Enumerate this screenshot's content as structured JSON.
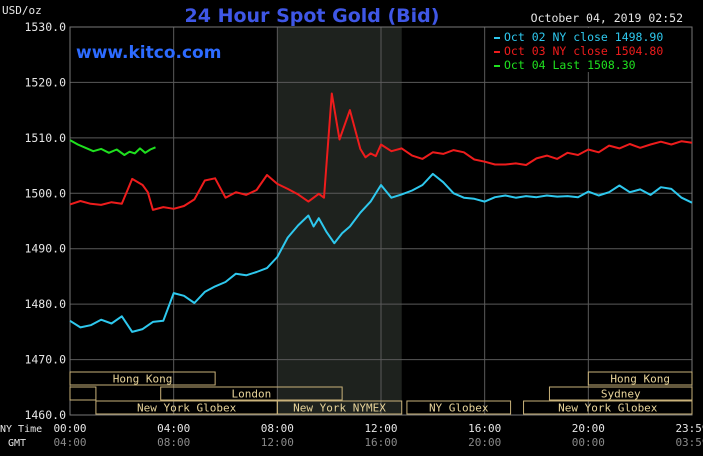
{
  "header": {
    "unit": "USD/oz",
    "title": "24 Hour Spot Gold (Bid)",
    "timestamp": "October 04, 2019 02:52",
    "site": "www.kitco.com"
  },
  "colors": {
    "background": "#000000",
    "grid": "#5a5a5a",
    "title": "#3f57e6",
    "site": "#2d6bff",
    "text": "#e6e6e6",
    "shade": "#1e221e",
    "session_text": "#e8d49a",
    "session_border": "#c9b27a"
  },
  "chart_data": {
    "type": "line",
    "title": "24 Hour Spot Gold (Bid)",
    "ylabel": "USD/oz",
    "ylim": [
      1460,
      1530
    ],
    "yticks": [
      "1460.0",
      "1470.0",
      "1480.0",
      "1490.0",
      "1500.0",
      "1510.0",
      "1520.0",
      "1530.0"
    ],
    "x_ticks_ny": [
      "00:00",
      "04:00",
      "08:00",
      "12:00",
      "16:00",
      "20:00",
      "23:59"
    ],
    "x_ticks_gmt": [
      "04:00",
      "08:00",
      "12:00",
      "16:00",
      "20:00",
      "00:00",
      "03:59"
    ],
    "x_axis_labels": [
      "NY Time",
      "GMT"
    ],
    "legend": {
      "placement": "top-right",
      "entries": [
        {
          "label": "Oct 02 NY close 1498.90",
          "color": "#2ec8ee"
        },
        {
          "label": "Oct 03 NY close 1504.80",
          "color": "#ee1c1c"
        },
        {
          "label": "Oct 04 Last 1508.30",
          "color": "#1fe01f"
        }
      ]
    },
    "series": [
      {
        "key": "oct02",
        "color": "#2ec8ee",
        "x": [
          0,
          0.4,
          0.8,
          1.2,
          1.6,
          2.0,
          2.4,
          2.8,
          3.2,
          3.6,
          4.0,
          4.4,
          4.8,
          5.2,
          5.6,
          6.0,
          6.4,
          6.8,
          7.2,
          7.6,
          8.0,
          8.4,
          8.8,
          9.2,
          9.4,
          9.6,
          9.9,
          10.2,
          10.5,
          10.8,
          11.2,
          11.6,
          12.0,
          12.4,
          12.8,
          13.2,
          13.6,
          14.0,
          14.4,
          14.8,
          15.2,
          15.6,
          16.0,
          16.4,
          16.8,
          17.2,
          17.6,
          18.0,
          18.4,
          18.8,
          19.2,
          19.6,
          20.0,
          20.4,
          20.8,
          21.2,
          21.6,
          22.0,
          22.4,
          22.8,
          23.2,
          23.6,
          24.0
        ],
        "values": [
          1477.0,
          1475.8,
          1476.2,
          1477.2,
          1476.5,
          1477.8,
          1475.0,
          1475.5,
          1476.8,
          1477.0,
          1482.0,
          1481.5,
          1480.2,
          1482.2,
          1483.2,
          1484.0,
          1485.5,
          1485.2,
          1485.8,
          1486.5,
          1488.5,
          1492.0,
          1494.2,
          1496.0,
          1494.0,
          1495.5,
          1493.0,
          1491.0,
          1492.8,
          1494.0,
          1496.5,
          1498.5,
          1501.5,
          1499.2,
          1499.8,
          1500.5,
          1501.5,
          1503.5,
          1502.0,
          1500.0,
          1499.2,
          1499.0,
          1498.5,
          1499.3,
          1499.6,
          1499.2,
          1499.5,
          1499.3,
          1499.6,
          1499.4,
          1499.5,
          1499.3,
          1500.3,
          1499.6,
          1500.2,
          1501.4,
          1500.2,
          1500.7,
          1499.7,
          1501.1,
          1500.8,
          1499.2,
          1498.3
        ]
      },
      {
        "key": "oct03",
        "color": "#ee1c1c",
        "x": [
          0,
          0.4,
          0.8,
          1.2,
          1.6,
          2.0,
          2.4,
          2.8,
          3.0,
          3.2,
          3.6,
          4.0,
          4.4,
          4.8,
          5.2,
          5.6,
          6.0,
          6.4,
          6.8,
          7.2,
          7.6,
          8.0,
          8.4,
          8.8,
          9.2,
          9.6,
          9.8,
          9.9,
          10.1,
          10.4,
          10.8,
          11.2,
          11.4,
          11.6,
          11.8,
          12.0,
          12.4,
          12.8,
          13.2,
          13.6,
          14.0,
          14.4,
          14.8,
          15.2,
          15.6,
          16.0,
          16.4,
          16.8,
          17.2,
          17.6,
          18.0,
          18.4,
          18.8,
          19.2,
          19.6,
          20.0,
          20.4,
          20.8,
          21.2,
          21.6,
          22.0,
          22.4,
          22.8,
          23.2,
          23.6,
          24.0
        ],
        "values": [
          1498.0,
          1498.6,
          1498.1,
          1497.9,
          1498.4,
          1498.1,
          1502.6,
          1501.5,
          1500.2,
          1497.0,
          1497.5,
          1497.2,
          1497.7,
          1498.9,
          1502.3,
          1502.7,
          1499.2,
          1500.2,
          1499.7,
          1500.6,
          1503.3,
          1501.7,
          1500.8,
          1499.8,
          1498.5,
          1499.9,
          1499.2,
          1505.5,
          1518.0,
          1509.7,
          1515.0,
          1508.0,
          1506.5,
          1507.2,
          1506.7,
          1508.8,
          1507.6,
          1508.1,
          1506.8,
          1506.2,
          1507.4,
          1507.1,
          1507.8,
          1507.4,
          1506.1,
          1505.7,
          1505.2,
          1505.2,
          1505.4,
          1505.1,
          1506.3,
          1506.8,
          1506.2,
          1507.3,
          1506.9,
          1507.9,
          1507.4,
          1508.6,
          1508.1,
          1508.9,
          1508.2,
          1508.8,
          1509.3,
          1508.8,
          1509.4,
          1509.1
        ]
      },
      {
        "key": "oct04",
        "color": "#1fe01f",
        "x": [
          0,
          0.3,
          0.6,
          0.9,
          1.2,
          1.5,
          1.8,
          2.1,
          2.3,
          2.5,
          2.7,
          2.9,
          3.1,
          3.3
        ],
        "values": [
          1509.6,
          1508.8,
          1508.2,
          1507.6,
          1508.0,
          1507.3,
          1507.9,
          1506.9,
          1507.5,
          1507.2,
          1508.1,
          1507.3,
          1507.9,
          1508.3
        ]
      }
    ],
    "shaded_region_hours": [
      8.0,
      12.8
    ],
    "sessions": [
      {
        "label": "Hong Kong",
        "row": 0,
        "start": 0,
        "end": 5.6
      },
      {
        "label": "",
        "row": 1,
        "start": 0,
        "end": 1.0
      },
      {
        "label": "London",
        "row": 1,
        "start": 3.5,
        "end": 10.5
      },
      {
        "label": "New York Globex",
        "row": 2,
        "start": 1.0,
        "end": 8.0
      },
      {
        "label": "New York NYMEX",
        "row": 2,
        "start": 8.0,
        "end": 12.8
      },
      {
        "label": "NY Globex",
        "row": 2,
        "start": 13.0,
        "end": 17.0
      },
      {
        "label": "Hong Kong",
        "row": 0,
        "start": 20.0,
        "end": 24.0
      },
      {
        "label": "Sydney",
        "row": 1,
        "start": 18.5,
        "end": 24.0
      },
      {
        "label": "New York Globex",
        "row": 2,
        "start": 17.5,
        "end": 24.0
      }
    ]
  }
}
